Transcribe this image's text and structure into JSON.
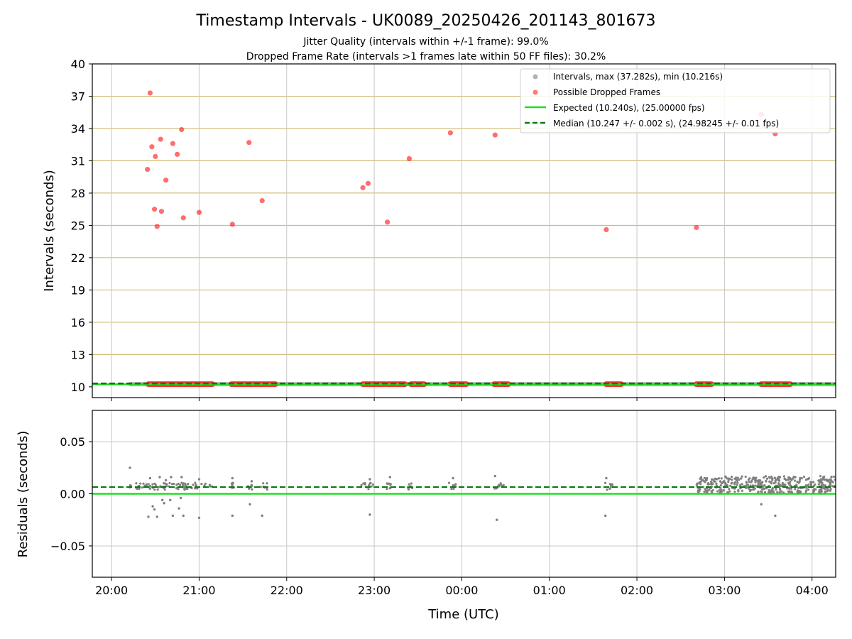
{
  "title": "Timestamp Intervals - UK0089_20250426_201143_801673",
  "subtitle_1": "Jitter Quality (intervals within +/-1 frame): 99.0%",
  "subtitle_2": "Dropped Frame Rate (intervals >1 frames late within 50 FF files): 30.2%",
  "colors": {
    "expected": "#1ee01e",
    "median": "#0a7a0a",
    "dropped": "#ff2020",
    "intervals": "#808080",
    "hgrid": "#c8b060",
    "vgrid": "#c8c8c8"
  },
  "chart_data": [
    {
      "type": "scatter",
      "name": "intervals",
      "ylabel": "Intervals (seconds)",
      "ylim": [
        9.0,
        40.0
      ],
      "yticks": [
        10,
        13,
        16,
        19,
        22,
        25,
        28,
        31,
        34,
        37,
        40
      ],
      "x_range_hours": [
        19.78,
        28.27
      ],
      "xticks_hours": [
        20,
        21,
        22,
        23,
        24,
        25,
        26,
        27,
        28
      ],
      "grid": "on",
      "legend_position": "upper right",
      "legend": [
        "Intervals, max (37.282s), min (10.216s)",
        "Possible Dropped Frames",
        "Expected (10.240s), (25.00000 fps)",
        "Median (10.247 +/- 0.002 s), (24.98245 +/- 0.01 fps)"
      ],
      "expected_value": 10.24,
      "median_value": 10.247,
      "baseline_series_range_hours": [
        20.2,
        28.27
      ],
      "dropped_baseline_segments_hours": [
        [
          20.42,
          21.15
        ],
        [
          21.37,
          21.55
        ],
        [
          21.57,
          21.87
        ],
        [
          22.87,
          23.12
        ],
        [
          23.15,
          23.35
        ],
        [
          23.42,
          23.57
        ],
        [
          23.87,
          24.05
        ],
        [
          24.37,
          24.53
        ],
        [
          25.65,
          25.82
        ],
        [
          26.68,
          26.85
        ],
        [
          27.42,
          27.75
        ]
      ],
      "dropped_points": [
        {
          "x": 20.44,
          "y": 37.3
        },
        {
          "x": 20.41,
          "y": 30.2
        },
        {
          "x": 20.46,
          "y": 32.3
        },
        {
          "x": 20.5,
          "y": 31.4
        },
        {
          "x": 20.56,
          "y": 33.0
        },
        {
          "x": 20.49,
          "y": 26.5
        },
        {
          "x": 20.52,
          "y": 24.9
        },
        {
          "x": 20.57,
          "y": 26.3
        },
        {
          "x": 20.62,
          "y": 29.2
        },
        {
          "x": 20.7,
          "y": 32.6
        },
        {
          "x": 20.75,
          "y": 31.6
        },
        {
          "x": 20.8,
          "y": 33.9
        },
        {
          "x": 20.82,
          "y": 25.7
        },
        {
          "x": 21.0,
          "y": 26.2
        },
        {
          "x": 21.38,
          "y": 25.1
        },
        {
          "x": 21.57,
          "y": 32.7
        },
        {
          "x": 21.72,
          "y": 27.3
        },
        {
          "x": 22.87,
          "y": 28.5
        },
        {
          "x": 22.93,
          "y": 28.9
        },
        {
          "x": 23.15,
          "y": 25.3
        },
        {
          "x": 23.4,
          "y": 31.2
        },
        {
          "x": 23.87,
          "y": 33.6
        },
        {
          "x": 24.38,
          "y": 33.4
        },
        {
          "x": 25.65,
          "y": 24.6
        },
        {
          "x": 26.68,
          "y": 24.8
        },
        {
          "x": 27.42,
          "y": 35.3
        },
        {
          "x": 27.58,
          "y": 33.5
        }
      ]
    },
    {
      "type": "scatter",
      "name": "residuals",
      "ylabel": "Residuals (seconds)",
      "xlabel": "Time (UTC)",
      "ylim": [
        -0.08,
        0.08
      ],
      "yticks": [
        0.05,
        0.0,
        -0.05
      ],
      "ytick_labels": [
        "0.05",
        "0.00",
        "−0.05"
      ],
      "x_range_hours": [
        19.78,
        28.27
      ],
      "xticks_hours": [
        20,
        21,
        22,
        23,
        24,
        25,
        26,
        27,
        28
      ],
      "xtick_labels": [
        "20:00",
        "21:00",
        "22:00",
        "23:00",
        "00:00",
        "01:00",
        "02:00",
        "03:00",
        "04:00"
      ],
      "expected_value": 0.0,
      "median_value": 0.0065,
      "outlier_points": [
        {
          "x": 20.21,
          "y": 0.025
        },
        {
          "x": 20.42,
          "y": -0.022
        },
        {
          "x": 20.47,
          "y": -0.012
        },
        {
          "x": 20.49,
          "y": -0.015
        },
        {
          "x": 20.52,
          "y": -0.022
        },
        {
          "x": 20.58,
          "y": -0.006
        },
        {
          "x": 20.6,
          "y": -0.009
        },
        {
          "x": 20.67,
          "y": -0.006
        },
        {
          "x": 20.7,
          "y": -0.021
        },
        {
          "x": 20.77,
          "y": -0.014
        },
        {
          "x": 20.79,
          "y": -0.004
        },
        {
          "x": 20.82,
          "y": -0.021
        },
        {
          "x": 21.0,
          "y": -0.023
        },
        {
          "x": 21.38,
          "y": -0.021
        },
        {
          "x": 21.58,
          "y": -0.01
        },
        {
          "x": 21.72,
          "y": -0.021
        },
        {
          "x": 22.95,
          "y": -0.02
        },
        {
          "x": 24.4,
          "y": -0.025
        },
        {
          "x": 25.64,
          "y": -0.021
        },
        {
          "x": 27.42,
          "y": -0.01
        },
        {
          "x": 27.58,
          "y": -0.021
        },
        {
          "x": 20.44,
          "y": 0.015
        },
        {
          "x": 20.55,
          "y": 0.016
        },
        {
          "x": 20.62,
          "y": 0.013
        },
        {
          "x": 20.68,
          "y": 0.016
        },
        {
          "x": 20.8,
          "y": 0.016
        },
        {
          "x": 21.0,
          "y": 0.014
        },
        {
          "x": 21.38,
          "y": 0.015
        },
        {
          "x": 21.6,
          "y": 0.012
        },
        {
          "x": 22.95,
          "y": 0.014
        },
        {
          "x": 23.18,
          "y": 0.016
        },
        {
          "x": 23.9,
          "y": 0.015
        },
        {
          "x": 24.38,
          "y": 0.017
        },
        {
          "x": 25.65,
          "y": 0.015
        }
      ],
      "cluster_segments_hours": [
        [
          20.2,
          21.15
        ],
        [
          21.37,
          21.4
        ],
        [
          21.55,
          21.62
        ],
        [
          21.7,
          21.78
        ],
        [
          22.85,
          23.0
        ],
        [
          23.13,
          23.2
        ],
        [
          23.38,
          23.45
        ],
        [
          23.85,
          23.95
        ],
        [
          24.37,
          24.48
        ],
        [
          25.63,
          25.72
        ],
        [
          26.68,
          28.27
        ]
      ],
      "dense_band_start_hours": 26.68
    }
  ]
}
